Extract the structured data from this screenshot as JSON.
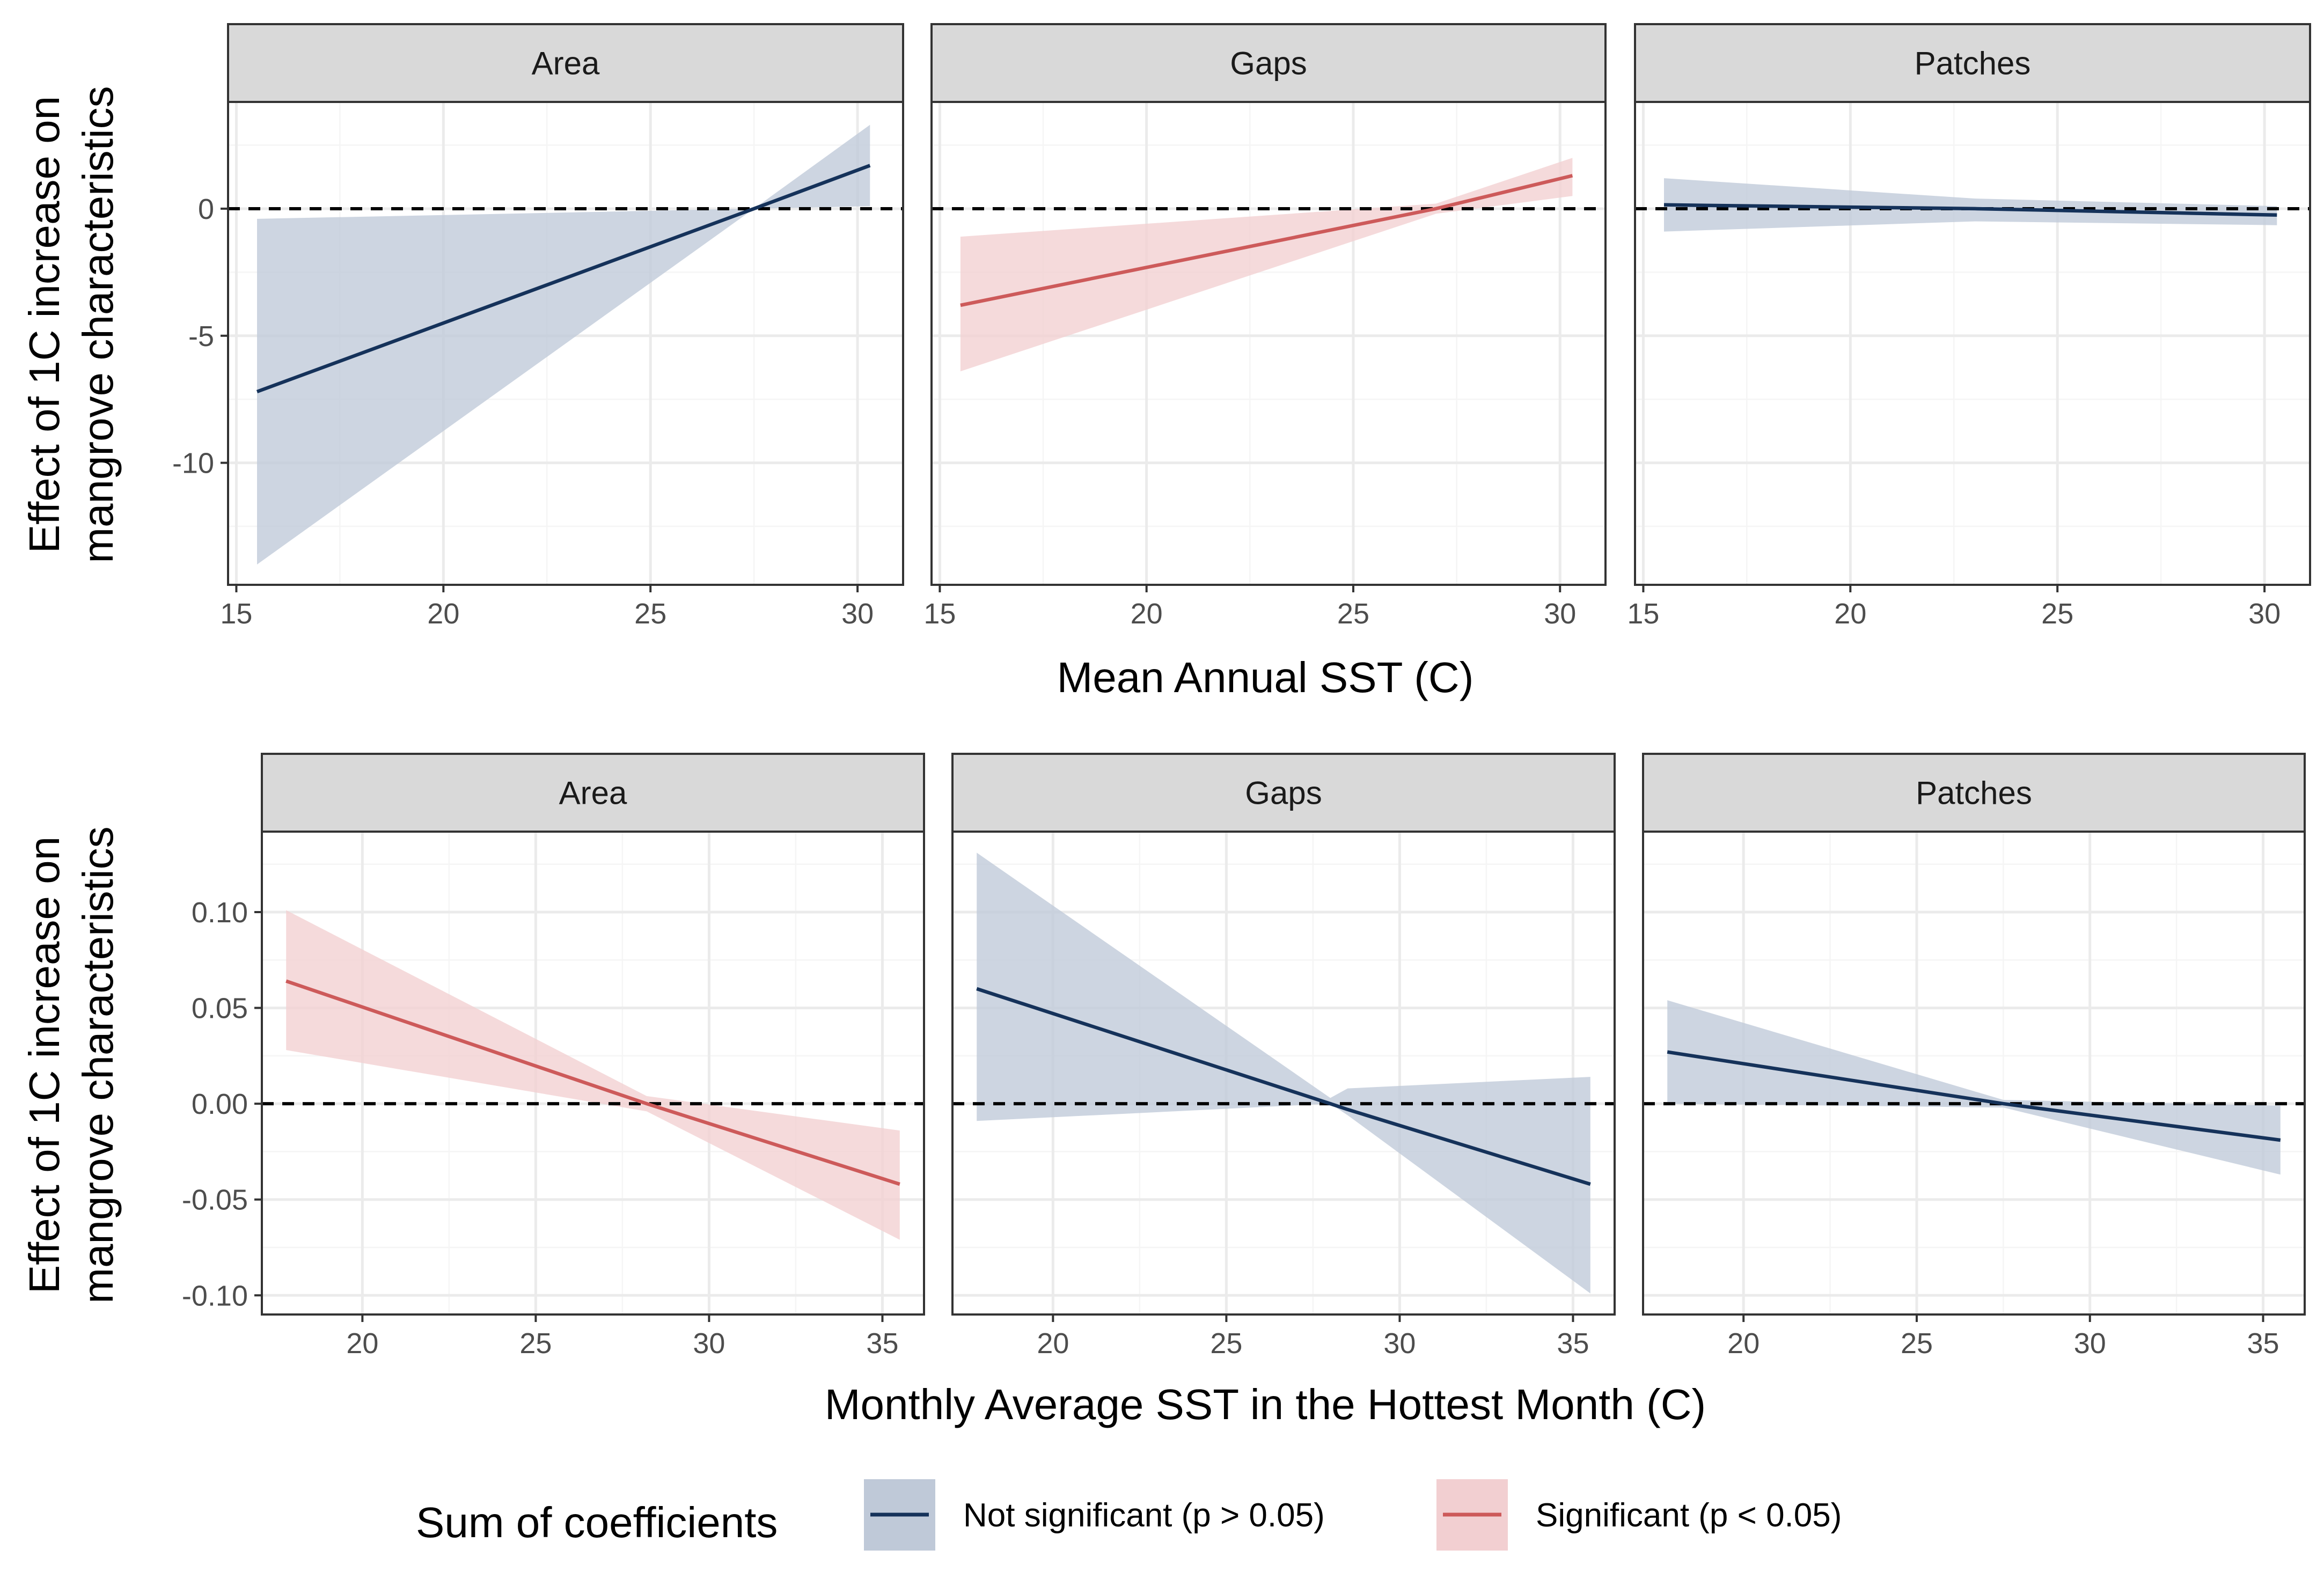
{
  "colors": {
    "not_significant_line": "#15325a",
    "not_significant_ribbon": "#bfc9d8",
    "significant_line": "#cd5a5a",
    "significant_ribbon": "#f2cfd1",
    "strip_fill": "#d9d9d9",
    "grid_major": "#ebebeb",
    "grid_minor": "#f5f5f5",
    "reference_line": "#000000"
  },
  "legend": {
    "title": "Sum of coefficients",
    "position": "bottom",
    "entries": [
      {
        "key": "ns",
        "label": "Not significant (p > 0.05)"
      },
      {
        "key": "sig",
        "label": "Significant (p < 0.05)"
      }
    ]
  },
  "chart_data": [
    {
      "type": "line",
      "row": "top",
      "ylabel": "Effect of 1C increase on mangrove characteristics",
      "ylabel_lines": [
        "Effect of 1C increase on",
        "mangrove characteristics"
      ],
      "xlabel": "Mean Annual SST (C)",
      "xlim": [
        14.8,
        31.1
      ],
      "ylim": [
        -14.8,
        4.2
      ],
      "xticks": [
        15,
        20,
        25,
        30
      ],
      "xtick_labels": [
        "15",
        "20",
        "25",
        "30"
      ],
      "xminor": [
        17.5,
        22.5,
        27.5
      ],
      "yticks": [
        0,
        -5,
        -10
      ],
      "ytick_labels": [
        "0",
        "-5",
        "-10"
      ],
      "yminor": [
        2.5,
        -2.5,
        -7.5,
        -12.5
      ],
      "reference_y": 0,
      "panels": [
        {
          "label": "Area",
          "significance": "ns",
          "x": [
            15.5,
            27.5,
            30.3
          ],
          "y": [
            -7.2,
            0.0,
            1.7
          ],
          "lower": [
            -14.0,
            0.0,
            0.1
          ],
          "upper": [
            -0.4,
            0.0,
            3.3
          ]
        },
        {
          "label": "Gaps",
          "significance": "sig",
          "x": [
            15.5,
            27.0,
            30.3
          ],
          "y": [
            -3.8,
            0.0,
            1.3
          ],
          "lower": [
            -6.4,
            -0.2,
            0.5
          ],
          "upper": [
            -1.1,
            0.2,
            2.0
          ]
        },
        {
          "label": "Patches",
          "significance": "ns",
          "x": [
            15.5,
            23.0,
            30.3
          ],
          "y": [
            0.15,
            0.0,
            -0.25
          ],
          "lower": [
            -0.9,
            -0.5,
            -0.65
          ],
          "upper": [
            1.2,
            0.4,
            0.1
          ]
        }
      ]
    },
    {
      "type": "line",
      "row": "bottom",
      "ylabel": "Effect of 1C increase on mangrove characteristics",
      "ylabel_lines": [
        "Effect of 1C increase on",
        "mangrove characteristics"
      ],
      "xlabel": "Monthly Average SST in the Hottest Month (C)",
      "xlim": [
        17.1,
        36.2
      ],
      "ylim": [
        -0.11,
        0.142
      ],
      "xticks": [
        20,
        25,
        30,
        35
      ],
      "xtick_labels": [
        "20",
        "25",
        "30",
        "35"
      ],
      "xminor": [
        22.5,
        27.5,
        32.5
      ],
      "yticks": [
        0.1,
        0.05,
        0.0,
        -0.05,
        -0.1
      ],
      "ytick_labels": [
        "0.10",
        "0.05",
        "0.00",
        "-0.05",
        "-0.10"
      ],
      "yminor": [
        0.125,
        0.075,
        0.025,
        -0.025,
        -0.075
      ],
      "reference_y": 0,
      "panels": [
        {
          "label": "Area",
          "significance": "sig",
          "x": [
            17.8,
            28.2,
            35.5
          ],
          "y": [
            0.064,
            0.0,
            -0.042
          ],
          "lower": [
            0.028,
            -0.004,
            -0.071
          ],
          "upper": [
            0.101,
            0.004,
            -0.014
          ]
        },
        {
          "label": "Gaps",
          "significance": "ns",
          "x": [
            17.8,
            28.0,
            28.5,
            35.5
          ],
          "y": [
            0.06,
            0.0,
            -0.003,
            -0.042
          ],
          "lower": [
            -0.009,
            0.0,
            -0.006,
            -0.099
          ],
          "upper": [
            0.131,
            0.003,
            0.008,
            0.014
          ]
        },
        {
          "label": "Patches",
          "significance": "ns",
          "x": [
            17.8,
            27.5,
            35.5
          ],
          "y": [
            0.027,
            0.0,
            -0.019
          ],
          "lower": [
            0.0,
            -0.002,
            -0.037
          ],
          "upper": [
            0.054,
            0.002,
            -0.001
          ]
        }
      ]
    }
  ]
}
